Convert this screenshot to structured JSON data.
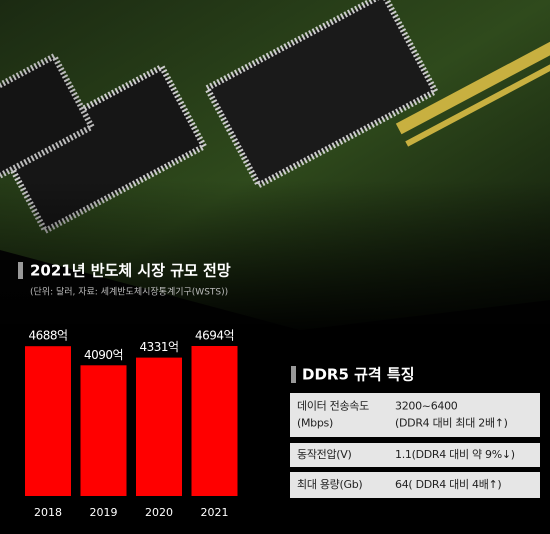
{
  "chart_data": {
    "type": "bar",
    "title": "2021년 반도체 시장 규모 전망",
    "subtitle": "(단위: 달러, 자료: 세계반도체시장통계기구(WSTS))",
    "categories": [
      "2018",
      "2019",
      "2020",
      "2021"
    ],
    "values": [
      4688,
      4090,
      4331,
      4694
    ],
    "value_labels": [
      "4688억",
      "4090억",
      "4331억",
      "4694억"
    ],
    "color": "#ff0000"
  },
  "table": {
    "title": "DDR5 규격 특징",
    "rows": [
      [
        [
          "데이터 전송속도",
          "(Mbps)"
        ],
        [
          "3200~6400",
          "(DDR4 대비 최대 2배↑)"
        ]
      ],
      [
        [
          "동작전압(V)"
        ],
        [
          "1.1(DDR4 대비 약 9%↓)"
        ]
      ],
      [
        [
          "최대 용량(Gb)"
        ],
        [
          "64( DDR4 대비 4배↑)"
        ]
      ]
    ]
  }
}
